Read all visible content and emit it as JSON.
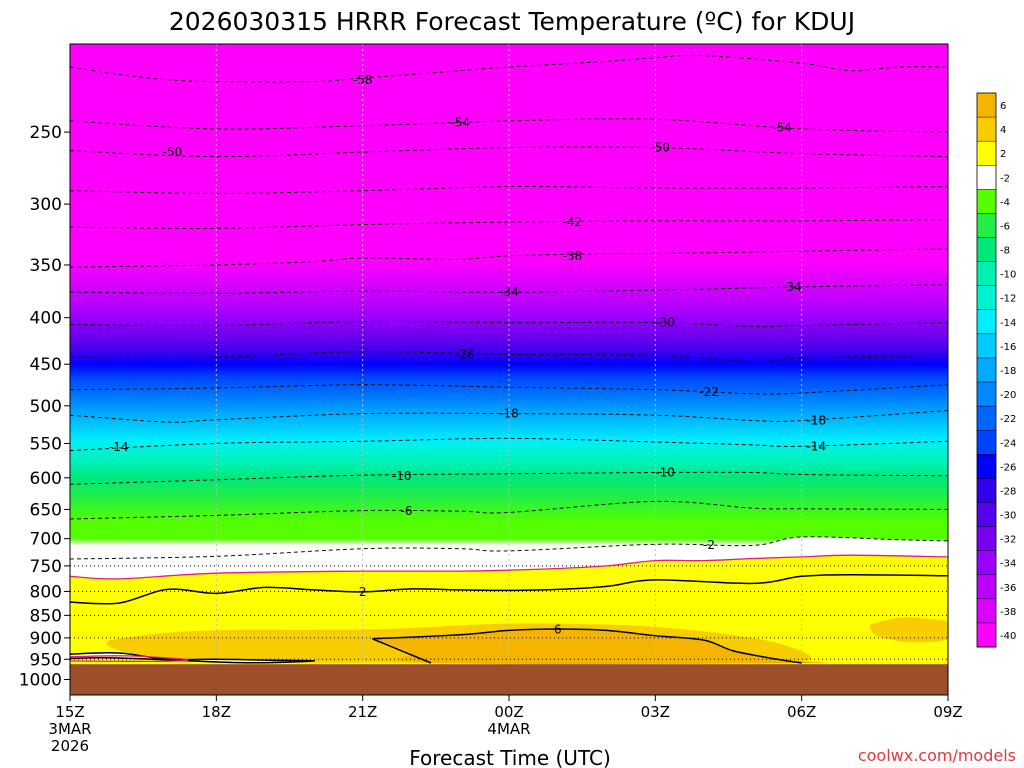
{
  "chart_data": {
    "type": "heatmap",
    "title": "2026030315 HRRR Forecast Temperature (ºC) for KDUJ",
    "xlabel": "Forecast Time (UTC)",
    "ylabel": "",
    "y_scale": "log-pressure",
    "ylim": [
      1040,
      200
    ],
    "y_ticks": [
      250,
      300,
      350,
      400,
      450,
      500,
      550,
      600,
      650,
      700,
      750,
      800,
      850,
      900,
      950,
      1000
    ],
    "x_ticks": [
      {
        "hour": 0,
        "label": "15Z",
        "sub": [
          "3MAR",
          "2026"
        ]
      },
      {
        "hour": 3,
        "label": "18Z"
      },
      {
        "hour": 6,
        "label": "21Z"
      },
      {
        "hour": 9,
        "label": "00Z",
        "sub": [
          "4MAR"
        ]
      },
      {
        "hour": 12,
        "label": "03Z"
      },
      {
        "hour": 15,
        "label": "06Z"
      },
      {
        "hour": 18,
        "label": "09Z"
      }
    ],
    "xlim": [
      0,
      18
    ],
    "dotted_pressure_lines": [
      750,
      800,
      850,
      900,
      950
    ],
    "ground_pressure": 962,
    "colorbar": {
      "labels": [
        "6",
        "4",
        "2",
        "-2",
        "-4",
        "-6",
        "-8",
        "-10",
        "-12",
        "-14",
        "-16",
        "-18",
        "-20",
        "-22",
        "-24",
        "-26",
        "-28",
        "-30",
        "-32",
        "-34",
        "-36",
        "-38",
        "-40"
      ],
      "colors": [
        "#f5b400",
        "#f8cd00",
        "#ffff00",
        "#ffffff",
        "#55ff00",
        "#22ee44",
        "#00e87a",
        "#00f0b0",
        "#00f2d2",
        "#00eeff",
        "#00ccff",
        "#00aaff",
        "#0088ff",
        "#0066ff",
        "#0044ff",
        "#0000ff",
        "#3300ee",
        "#5500ee",
        "#7700ee",
        "#9900ff",
        "#bb00ff",
        "#dd00ff",
        "#ff00ff"
      ]
    },
    "series": [
      {
        "name": "-58",
        "values": [
          [
            0,
            212
          ],
          [
            1,
            216
          ],
          [
            2,
            219
          ],
          [
            3,
            220
          ],
          [
            5,
            220
          ],
          [
            6,
            218
          ],
          [
            8,
            214
          ],
          [
            9,
            212
          ],
          [
            11,
            209
          ],
          [
            12,
            207
          ],
          [
            13,
            206
          ],
          [
            15,
            210
          ],
          [
            16,
            214
          ],
          [
            17,
            212
          ],
          [
            18,
            212
          ]
        ]
      },
      {
        "name": "-54",
        "values": [
          [
            0,
            243
          ],
          [
            3,
            248
          ],
          [
            6,
            246
          ],
          [
            9,
            243
          ],
          [
            12,
            242
          ],
          [
            15,
            248
          ],
          [
            18,
            250
          ]
        ]
      },
      {
        "name": "-50",
        "values": [
          [
            0,
            262
          ],
          [
            3,
            266
          ],
          [
            6,
            263
          ],
          [
            9,
            260
          ],
          [
            12,
            260
          ],
          [
            15,
            264
          ],
          [
            18,
            266
          ]
        ]
      },
      {
        "name": "-46",
        "values": [
          [
            0,
            290
          ],
          [
            3,
            292
          ],
          [
            6,
            290
          ],
          [
            9,
            287
          ],
          [
            12,
            288
          ],
          [
            15,
            288
          ],
          [
            18,
            287
          ]
        ]
      },
      {
        "name": "-42",
        "values": [
          [
            0,
            318
          ],
          [
            3,
            319
          ],
          [
            6,
            316
          ],
          [
            9,
            314
          ],
          [
            12,
            313
          ],
          [
            15,
            313
          ],
          [
            18,
            312
          ]
        ]
      },
      {
        "name": "-38",
        "values": [
          [
            0,
            352
          ],
          [
            3,
            350
          ],
          [
            5,
            347
          ],
          [
            6,
            344
          ],
          [
            8,
            345
          ],
          [
            9,
            342
          ],
          [
            11,
            340
          ],
          [
            12,
            340
          ],
          [
            15,
            338
          ],
          [
            18,
            336
          ]
        ]
      },
      {
        "name": "-34",
        "values": [
          [
            0,
            375
          ],
          [
            3,
            376
          ],
          [
            6,
            374
          ],
          [
            9,
            375
          ],
          [
            12,
            373
          ],
          [
            15,
            370
          ],
          [
            18,
            368
          ]
        ]
      },
      {
        "name": "-30",
        "values": [
          [
            0,
            407
          ],
          [
            3,
            408
          ],
          [
            6,
            404
          ],
          [
            9,
            405
          ],
          [
            12,
            405
          ],
          [
            14,
            409
          ],
          [
            15,
            408
          ],
          [
            18,
            405
          ]
        ]
      },
      {
        "name": "-26",
        "values": [
          [
            0,
            442
          ],
          [
            3,
            442
          ],
          [
            6,
            436
          ],
          [
            9,
            439
          ],
          [
            12,
            440
          ],
          [
            14,
            447
          ],
          [
            15,
            443
          ],
          [
            18,
            440
          ]
        ]
      },
      {
        "name": "-22",
        "values": [
          [
            0,
            480
          ],
          [
            3,
            478
          ],
          [
            6,
            474
          ],
          [
            9,
            477
          ],
          [
            12,
            480
          ],
          [
            14,
            485
          ],
          [
            15,
            484
          ],
          [
            18,
            474
          ]
        ]
      },
      {
        "name": "-18",
        "values": [
          [
            0,
            512
          ],
          [
            2,
            521
          ],
          [
            3,
            518
          ],
          [
            6,
            510
          ],
          [
            9,
            510
          ],
          [
            12,
            512
          ],
          [
            14,
            519
          ],
          [
            15,
            519
          ],
          [
            18,
            506
          ]
        ]
      },
      {
        "name": "-14",
        "values": [
          [
            0,
            560
          ],
          [
            3,
            550
          ],
          [
            6,
            547
          ],
          [
            9,
            543
          ],
          [
            12,
            548
          ],
          [
            14,
            552
          ],
          [
            15,
            554
          ],
          [
            18,
            547
          ]
        ]
      },
      {
        "name": "-10",
        "values": [
          [
            0,
            610
          ],
          [
            3,
            603
          ],
          [
            6,
            596
          ],
          [
            9,
            594
          ],
          [
            12,
            592
          ],
          [
            14,
            592
          ],
          [
            15,
            595
          ],
          [
            18,
            597
          ]
        ]
      },
      {
        "name": "-6",
        "values": [
          [
            0,
            666
          ],
          [
            3,
            660
          ],
          [
            6,
            652
          ],
          [
            8,
            653
          ],
          [
            9,
            655
          ],
          [
            12,
            637
          ],
          [
            14,
            648
          ],
          [
            15,
            649
          ],
          [
            18,
            650
          ]
        ]
      },
      {
        "name": "-2",
        "values": [
          [
            0,
            737
          ],
          [
            3,
            732
          ],
          [
            6,
            718
          ],
          [
            8,
            718
          ],
          [
            9,
            722
          ],
          [
            12,
            710
          ],
          [
            14,
            712
          ],
          [
            15,
            697
          ],
          [
            17,
            702
          ],
          [
            18,
            704
          ]
        ]
      }
    ],
    "contour_2": [
      [
        0,
        822
      ],
      [
        1,
        824
      ],
      [
        2,
        796
      ],
      [
        3,
        804
      ],
      [
        4,
        792
      ],
      [
        5,
        797
      ],
      [
        6,
        801
      ],
      [
        7,
        795
      ],
      [
        8,
        797
      ],
      [
        9,
        798
      ],
      [
        10,
        796
      ],
      [
        11,
        790
      ],
      [
        12,
        777
      ],
      [
        14,
        784
      ],
      [
        15,
        770
      ],
      [
        16,
        767
      ],
      [
        18,
        769
      ]
    ],
    "contour_6": [
      [
        6.2,
        902
      ],
      [
        6.5,
        912
      ],
      [
        7.0,
        935
      ],
      [
        7.4,
        952
      ],
      [
        7.0,
        935
      ],
      [
        8,
        893
      ],
      [
        9,
        883
      ],
      [
        10,
        880
      ],
      [
        11,
        883
      ],
      [
        12,
        895
      ],
      [
        13,
        905
      ],
      [
        13.6,
        930
      ],
      [
        14.5,
        950
      ],
      [
        15,
        959
      ]
    ],
    "contour_warm": [
      [
        0,
        938
      ],
      [
        1,
        935
      ],
      [
        2,
        950
      ],
      [
        3,
        950
      ],
      [
        4,
        952
      ],
      [
        5,
        954
      ],
      [
        3.5,
        958
      ],
      [
        1,
        947
      ],
      [
        0,
        948
      ]
    ],
    "contour_0": [
      [
        0,
        770
      ],
      [
        1,
        775
      ],
      [
        3,
        764
      ],
      [
        6,
        760
      ],
      [
        8,
        760
      ],
      [
        9,
        758
      ],
      [
        10,
        755
      ],
      [
        11,
        750
      ],
      [
        12,
        740
      ],
      [
        13,
        740
      ],
      [
        14,
        736
      ],
      [
        15,
        733
      ],
      [
        16,
        730
      ],
      [
        18,
        733
      ]
    ],
    "contour_labels": [
      {
        "text": "-58",
        "x": 6.0,
        "p": 219
      },
      {
        "text": "-54",
        "x": 8.0,
        "p": 244
      },
      {
        "text": "-54",
        "x": 14.6,
        "p": 247
      },
      {
        "text": "-50",
        "x": 2.1,
        "p": 263
      },
      {
        "text": "-50",
        "x": 12.1,
        "p": 260
      },
      {
        "text": "-42",
        "x": 10.3,
        "p": 314
      },
      {
        "text": "-38",
        "x": 10.3,
        "p": 342
      },
      {
        "text": "-34",
        "x": 9.0,
        "p": 375
      },
      {
        "text": "-34",
        "x": 14.8,
        "p": 370
      },
      {
        "text": "-30",
        "x": 12.2,
        "p": 405
      },
      {
        "text": "-26",
        "x": 8.1,
        "p": 439
      },
      {
        "text": "-22",
        "x": 13.1,
        "p": 483
      },
      {
        "text": "-18",
        "x": 9.0,
        "p": 510
      },
      {
        "text": "-18",
        "x": 15.3,
        "p": 519
      },
      {
        "text": "-14",
        "x": 1.0,
        "p": 555
      },
      {
        "text": "-14",
        "x": 15.3,
        "p": 554
      },
      {
        "text": "-10",
        "x": 6.8,
        "p": 597
      },
      {
        "text": "-10",
        "x": 12.2,
        "p": 592
      },
      {
        "text": "-6",
        "x": 6.9,
        "p": 653
      },
      {
        "text": "-2",
        "x": 13.1,
        "p": 711
      },
      {
        "text": "2",
        "x": 6.0,
        "p": 801
      },
      {
        "text": "6",
        "x": 10.0,
        "p": 881
      }
    ],
    "credit": "coolwx.com/models"
  }
}
